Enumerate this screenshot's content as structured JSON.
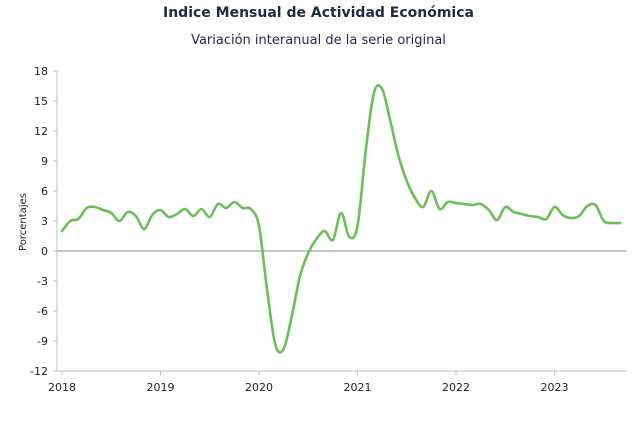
{
  "chart_data": {
    "type": "line",
    "title": "Indice Mensual de  Actividad Económica",
    "subtitle": "Variación interanual de la serie original",
    "ylabel": "Porcentajes",
    "xlabel": "",
    "ylim": [
      -12,
      18
    ],
    "yticks": [
      18,
      15,
      12,
      9,
      6,
      3,
      0,
      -3,
      -6,
      -9,
      -12
    ],
    "xticks": [
      "2018",
      "2019",
      "2020",
      "2021",
      "2022",
      "2023"
    ],
    "negative_tick_color": "#cc0000",
    "grid": false,
    "series": [
      {
        "color": "#6bbf59",
        "x": [
          "2018-01",
          "2018-02",
          "2018-03",
          "2018-04",
          "2018-05",
          "2018-06",
          "2018-07",
          "2018-08",
          "2018-09",
          "2018-10",
          "2018-11",
          "2018-12",
          "2019-01",
          "2019-02",
          "2019-03",
          "2019-04",
          "2019-05",
          "2019-06",
          "2019-07",
          "2019-08",
          "2019-09",
          "2019-10",
          "2019-11",
          "2019-12",
          "2020-01",
          "2020-02",
          "2020-03",
          "2020-04",
          "2020-05",
          "2020-06",
          "2020-07",
          "2020-08",
          "2020-09",
          "2020-10",
          "2020-11",
          "2020-12",
          "2021-01",
          "2021-02",
          "2021-03",
          "2021-04",
          "2021-05",
          "2021-06",
          "2021-07",
          "2021-08",
          "2021-09",
          "2021-10",
          "2021-11",
          "2021-12",
          "2022-01",
          "2022-02",
          "2022-03",
          "2022-04",
          "2022-05",
          "2022-06",
          "2022-07",
          "2022-08",
          "2022-09",
          "2022-10",
          "2022-11",
          "2022-12",
          "2023-01",
          "2023-02",
          "2023-03",
          "2023-04",
          "2023-05",
          "2023-06",
          "2023-07",
          "2023-08",
          "2023-09"
        ],
        "values": [
          2.0,
          3.0,
          3.2,
          4.3,
          4.4,
          4.1,
          3.8,
          3.0,
          3.9,
          3.5,
          2.2,
          3.6,
          4.1,
          3.4,
          3.7,
          4.2,
          3.5,
          4.2,
          3.4,
          4.7,
          4.3,
          4.9,
          4.3,
          4.2,
          2.5,
          -4.0,
          -9.4,
          -9.8,
          -6.5,
          -2.5,
          -0.2,
          1.2,
          2.0,
          1.1,
          3.8,
          1.4,
          2.5,
          10.0,
          15.8,
          16.2,
          13.0,
          9.5,
          7.0,
          5.3,
          4.4,
          6.0,
          4.2,
          4.9,
          4.8,
          4.7,
          4.6,
          4.7,
          4.1,
          3.1,
          4.4,
          3.9,
          3.7,
          3.5,
          3.4,
          3.2,
          4.4,
          3.6,
          3.3,
          3.5,
          4.5,
          4.6,
          3.0,
          2.8,
          2.8
        ]
      }
    ]
  }
}
